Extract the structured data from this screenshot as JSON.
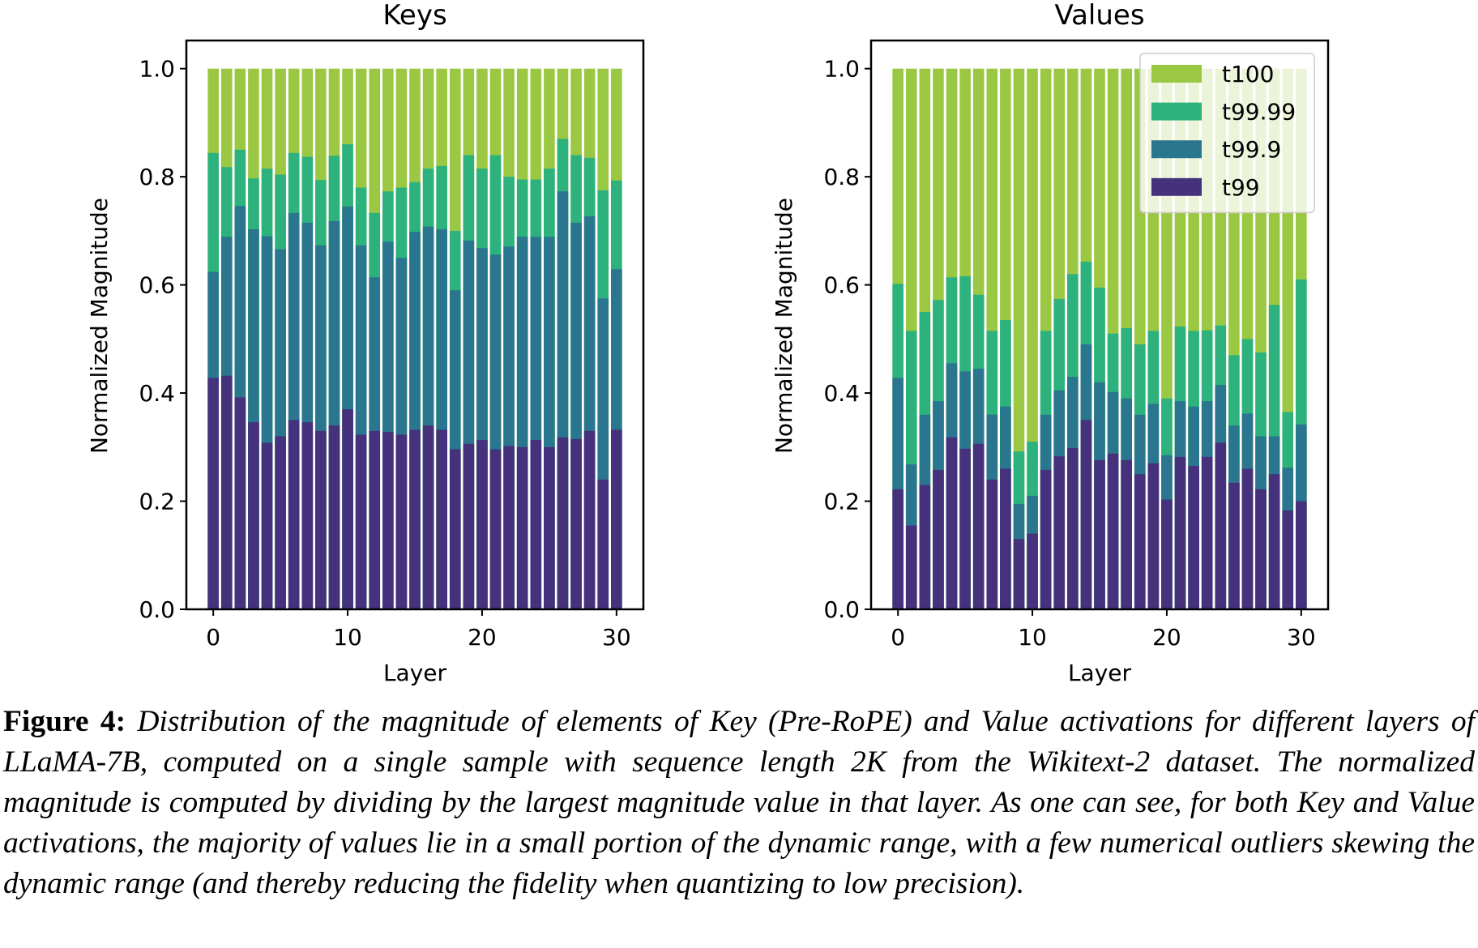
{
  "charts": [
    {
      "chart_data": {
        "type": "bar",
        "title": "Keys",
        "x_label": "Layer",
        "y_label": "Normalized Magnitude",
        "x": [
          0,
          1,
          2,
          3,
          4,
          5,
          6,
          7,
          8,
          9,
          10,
          11,
          12,
          13,
          14,
          15,
          16,
          17,
          18,
          19,
          20,
          21,
          22,
          23,
          24,
          25,
          26,
          27,
          28,
          29,
          30
        ],
        "series": [
          {
            "color": "#9bc843",
            "values": [
              1,
              1,
              1,
              1,
              1,
              1,
              1,
              1,
              1,
              1,
              1,
              1,
              1,
              1,
              1,
              1,
              1,
              1,
              1,
              1,
              1,
              1,
              1,
              1,
              1,
              1,
              1,
              1,
              1,
              1,
              1
            ]
          },
          {
            "color": "#2db27d",
            "values": [
              0.844,
              0.818,
              0.85,
              0.797,
              0.815,
              0.804,
              0.844,
              0.837,
              0.794,
              0.839,
              0.86,
              0.78,
              0.733,
              0.773,
              0.78,
              0.79,
              0.815,
              0.82,
              0.7,
              0.84,
              0.815,
              0.84,
              0.8,
              0.795,
              0.795,
              0.815,
              0.87,
              0.84,
              0.835,
              0.775,
              0.793
            ]
          },
          {
            "color": "#2a768e",
            "values": [
              0.624,
              0.689,
              0.746,
              0.703,
              0.69,
              0.666,
              0.733,
              0.715,
              0.673,
              0.718,
              0.745,
              0.673,
              0.614,
              0.68,
              0.65,
              0.698,
              0.708,
              0.703,
              0.59,
              0.682,
              0.668,
              0.656,
              0.671,
              0.689,
              0.689,
              0.689,
              0.773,
              0.715,
              0.727,
              0.575,
              0.629
            ]
          },
          {
            "color": "#45317c",
            "values": [
              0.428,
              0.432,
              0.392,
              0.346,
              0.308,
              0.32,
              0.35,
              0.346,
              0.33,
              0.34,
              0.37,
              0.323,
              0.33,
              0.328,
              0.323,
              0.332,
              0.34,
              0.332,
              0.296,
              0.306,
              0.313,
              0.296,
              0.302,
              0.3,
              0.313,
              0.3,
              0.318,
              0.315,
              0.33,
              0.24,
              0.332
            ]
          }
        ],
        "xlim": [
          -2,
          32
        ],
        "xticks": [
          0,
          10,
          20,
          30
        ],
        "ylim": [
          0,
          1.052
        ],
        "yticks": [
          {
            "value": 0,
            "label": "0.0"
          },
          0.2,
          0.4,
          0.6,
          0.8,
          {
            "value": 1,
            "label": "1.0"
          }
        ]
      }
    },
    {
      "chart_data": {
        "type": "bar",
        "title": "Values",
        "x_label": "Layer",
        "y_label": "Normalized Magnitude",
        "x": [
          0,
          1,
          2,
          3,
          4,
          5,
          6,
          7,
          8,
          9,
          10,
          11,
          12,
          13,
          14,
          15,
          16,
          17,
          18,
          19,
          20,
          21,
          22,
          23,
          24,
          25,
          26,
          27,
          28,
          29,
          30
        ],
        "series": [
          {
            "name": "t100",
            "color": "#9bc843",
            "values": [
              1,
              1,
              1,
              1,
              1,
              1,
              1,
              1,
              1,
              1,
              1,
              1,
              1,
              1,
              1,
              1,
              1,
              1,
              1,
              1,
              1,
              1,
              1,
              1,
              1,
              1,
              1,
              1,
              1,
              1,
              1
            ]
          },
          {
            "name": "t99.99",
            "color": "#2db27d",
            "values": [
              0.602,
              0.515,
              0.55,
              0.572,
              0.614,
              0.616,
              0.582,
              0.515,
              0.535,
              0.292,
              0.31,
              0.515,
              0.574,
              0.62,
              0.643,
              0.595,
              0.51,
              0.52,
              0.49,
              0.515,
              0.39,
              0.523,
              0.515,
              0.516,
              0.525,
              0.47,
              0.5,
              0.475,
              0.563,
              0.365,
              0.61
            ]
          },
          {
            "name": "t99.9",
            "color": "#2a768e",
            "values": [
              0.428,
              0.268,
              0.36,
              0.385,
              0.455,
              0.44,
              0.445,
              0.36,
              0.375,
              0.195,
              0.21,
              0.36,
              0.405,
              0.43,
              0.49,
              0.42,
              0.402,
              0.39,
              0.36,
              0.38,
              0.285,
              0.385,
              0.375,
              0.385,
              0.415,
              0.34,
              0.362,
              0.32,
              0.32,
              0.262,
              0.342
            ]
          },
          {
            "name": "t99",
            "color": "#45317c",
            "values": [
              0.222,
              0.155,
              0.23,
              0.258,
              0.318,
              0.297,
              0.306,
              0.24,
              0.26,
              0.13,
              0.14,
              0.258,
              0.283,
              0.298,
              0.35,
              0.276,
              0.288,
              0.276,
              0.25,
              0.27,
              0.203,
              0.282,
              0.265,
              0.282,
              0.308,
              0.234,
              0.26,
              0.222,
              0.25,
              0.183,
              0.2
            ]
          }
        ],
        "xlim": [
          -2,
          32
        ],
        "xticks": [
          0,
          10,
          20,
          30
        ],
        "ylim": [
          0,
          1.052
        ],
        "yticks": [
          {
            "value": 0,
            "label": "0.0"
          },
          0.2,
          0.4,
          0.6,
          0.8,
          {
            "value": 1,
            "label": "1.0"
          }
        ],
        "legend": "upper right"
      }
    }
  ],
  "caption": {
    "label": "Figure 4:",
    "text": "Distribution of the magnitude of elements of Key (Pre-RoPE) and Value activations for different layers of LLaMA-7B, computed on a single sample with sequence length 2K from the Wikitext-2 dataset. The normalized magnitude is computed by dividing by the largest magnitude value in that layer. As one can see, for both Key and Value activations, the majority of values lie in a small portion of the dynamic range, with a few numerical outliers skewing the dynamic range (and thereby reducing the fidelity when quantizing to low precision)."
  }
}
